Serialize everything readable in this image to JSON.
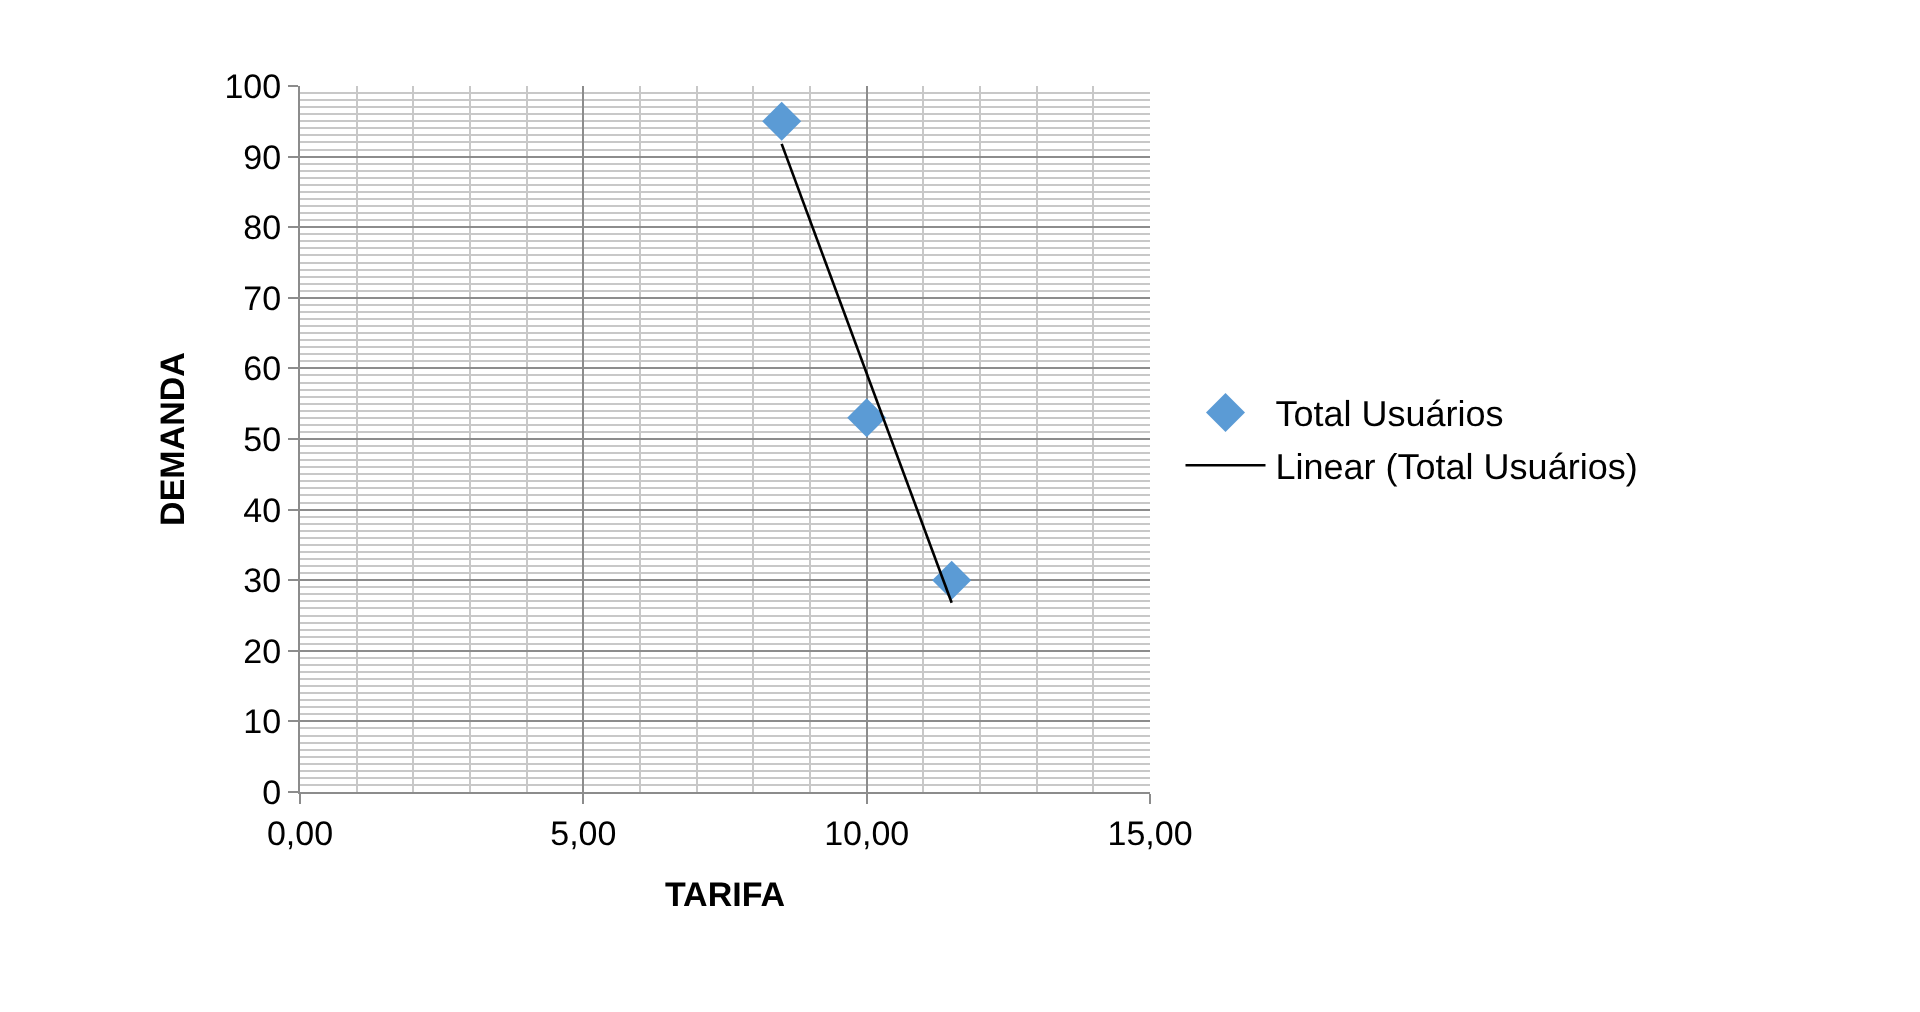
{
  "chart_data": {
    "type": "scatter",
    "xlabel": "TARIFA",
    "ylabel": "DEMANDA",
    "xlim": [
      0,
      15
    ],
    "xticks": [
      {
        "value": 0,
        "label": "0,00"
      },
      {
        "value": 5,
        "label": "5,00"
      },
      {
        "value": 10,
        "label": "10,00"
      },
      {
        "value": 15,
        "label": "15,00"
      }
    ],
    "ylim": [
      0,
      100
    ],
    "yticks": [
      0,
      10,
      20,
      30,
      40,
      50,
      60,
      70,
      80,
      90,
      100
    ],
    "grid": true,
    "legend": "right",
    "series": [
      {
        "name": "Total Usuários",
        "marker": "diamond",
        "color": "#5b9bd5",
        "x": [
          8.5,
          10,
          11.5
        ],
        "values": [
          95,
          53,
          30
        ]
      },
      {
        "name": "Linear (Total Usuários)",
        "type": "line",
        "marker": "none",
        "line_style": "solid",
        "color": "#000000",
        "x": [
          8.5,
          11.5
        ],
        "values": [
          91.8,
          26.8
        ]
      }
    ]
  }
}
